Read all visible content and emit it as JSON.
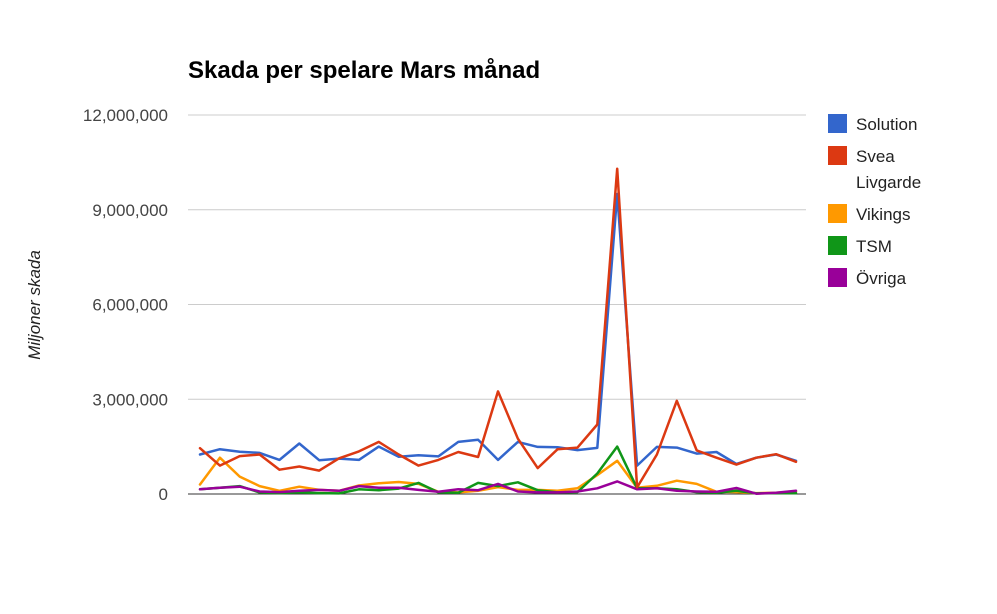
{
  "chart_data": {
    "type": "line",
    "title": "Skada per spelare Mars månad",
    "xlabel": "",
    "ylabel": "Miljoner skada",
    "ylim": [
      0,
      12000000
    ],
    "yticks": [
      0,
      3000000,
      6000000,
      9000000,
      12000000
    ],
    "ytick_labels": [
      "0",
      "3,000,000",
      "6,000,000",
      "9,000,000",
      "12,000,000"
    ],
    "grid": true,
    "legend_position": "right",
    "series": [
      {
        "name": "Solution",
        "color": "#3366cc",
        "values": [
          1250000,
          1420000,
          1340000,
          1300000,
          1080000,
          1600000,
          1070000,
          1120000,
          1080000,
          1500000,
          1180000,
          1230000,
          1190000,
          1650000,
          1720000,
          1080000,
          1650000,
          1490000,
          1480000,
          1390000,
          1460000,
          9500000,
          900000,
          1490000,
          1470000,
          1280000,
          1330000,
          950000,
          1150000,
          1250000,
          1050000
        ]
      },
      {
        "name": "Svea Livgarde",
        "color": "#dc3912",
        "values": [
          1450000,
          900000,
          1200000,
          1250000,
          770000,
          870000,
          740000,
          1130000,
          1350000,
          1650000,
          1250000,
          900000,
          1080000,
          1330000,
          1170000,
          3250000,
          1750000,
          820000,
          1420000,
          1470000,
          2200000,
          10300000,
          210000,
          1250000,
          2950000,
          1380000,
          1150000,
          930000,
          1150000,
          1260000,
          1020000
        ]
      },
      {
        "name": "Vikings",
        "color": "#ff9900",
        "values": [
          300000,
          1150000,
          550000,
          250000,
          100000,
          230000,
          130000,
          100000,
          270000,
          340000,
          380000,
          320000,
          70000,
          50000,
          100000,
          220000,
          130000,
          130000,
          100000,
          180000,
          600000,
          1050000,
          200000,
          260000,
          420000,
          320000,
          70000,
          60000,
          30000,
          40000,
          80000
        ]
      },
      {
        "name": "TSM",
        "color": "#109618",
        "values": [
          150000,
          200000,
          250000,
          50000,
          30000,
          50000,
          30000,
          20000,
          150000,
          120000,
          170000,
          350000,
          50000,
          40000,
          350000,
          250000,
          370000,
          120000,
          50000,
          60000,
          650000,
          1500000,
          180000,
          180000,
          150000,
          60000,
          40000,
          100000,
          20000,
          30000,
          30000
        ]
      },
      {
        "name": "Övriga",
        "color": "#990099",
        "values": [
          150000,
          200000,
          230000,
          80000,
          60000,
          100000,
          130000,
          100000,
          250000,
          200000,
          200000,
          130000,
          70000,
          150000,
          120000,
          320000,
          80000,
          50000,
          50000,
          80000,
          180000,
          400000,
          150000,
          180000,
          100000,
          80000,
          70000,
          190000,
          10000,
          40000,
          100000
        ]
      }
    ]
  }
}
